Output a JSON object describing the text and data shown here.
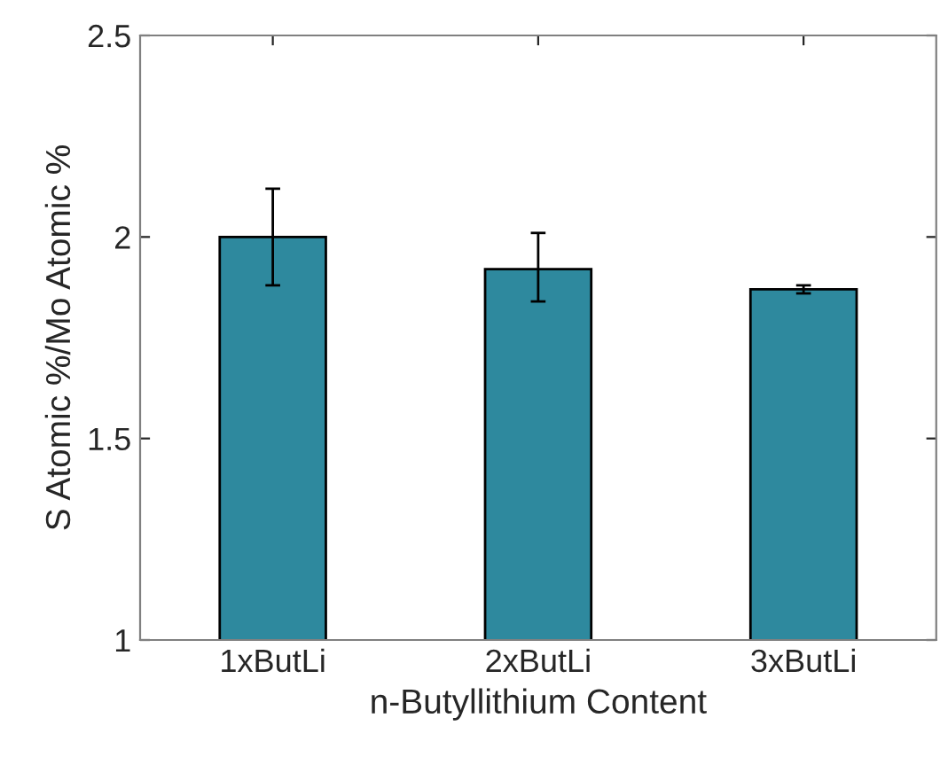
{
  "chart_data": {
    "type": "bar",
    "xlabel": "n-Butyllithium Content",
    "ylabel": "S Atomic %/Mo Atomic %",
    "categories": [
      "1xButLi",
      "2xButLi",
      "3xButLi"
    ],
    "series": [
      {
        "color": "#2e899e",
        "values": [
          2.0,
          1.92,
          1.87
        ],
        "errors": [
          0.12,
          [
            1.84,
            2.01
          ],
          0.01
        ]
      }
    ],
    "ylim": [
      1,
      2.5
    ],
    "yticks": [
      1,
      1.5,
      2,
      2.5
    ],
    "grid": false
  }
}
